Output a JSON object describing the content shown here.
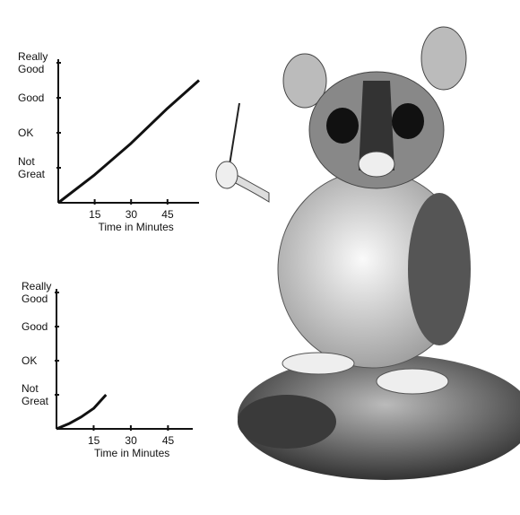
{
  "chart_data": [
    {
      "type": "line",
      "x_label": "Time in Minutes",
      "x": [
        0,
        15,
        30,
        45,
        58
      ],
      "values": [
        0,
        0.8,
        1.7,
        2.7,
        3.5
      ],
      "color": "#111111",
      "xlim": [
        0,
        58
      ],
      "ylim": [
        0,
        4
      ],
      "xticks": [
        15,
        30,
        45
      ],
      "yticks": [
        {
          "value": 1,
          "label": "Not Great"
        },
        {
          "value": 2,
          "label": "OK"
        },
        {
          "value": 3,
          "label": "Good"
        },
        {
          "value": 4,
          "label": "Really Good"
        }
      ]
    },
    {
      "type": "line",
      "x_label": "Time in Minutes",
      "x": [
        0,
        5,
        10,
        15,
        20
      ],
      "values": [
        0,
        0.15,
        0.35,
        0.6,
        1.0
      ],
      "color": "#111111",
      "xlim": [
        0,
        55
      ],
      "ylim": [
        0,
        4
      ],
      "xticks": [
        15,
        30,
        45
      ],
      "yticks": [
        {
          "value": 1,
          "label": "Not Great"
        },
        {
          "value": 2,
          "label": "OK"
        },
        {
          "value": 3,
          "label": "Good"
        },
        {
          "value": 4,
          "label": "Really Good"
        }
      ]
    }
  ]
}
